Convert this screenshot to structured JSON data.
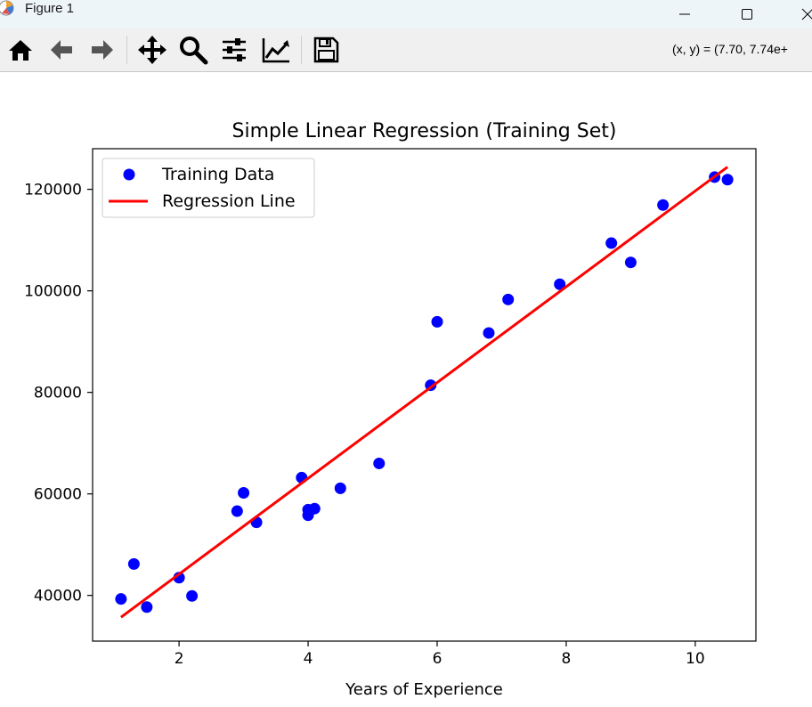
{
  "window": {
    "title": "Figure 1"
  },
  "toolbar": {
    "tools": [
      {
        "name": "home-icon"
      },
      {
        "name": "back-arrow-icon"
      },
      {
        "name": "forward-arrow-icon"
      },
      {
        "name": "pan-icon"
      },
      {
        "name": "zoom-icon"
      },
      {
        "name": "subplots-config-icon"
      },
      {
        "name": "edit-axis-icon"
      },
      {
        "name": "save-icon"
      }
    ],
    "coordinates": "(x, y) = (7.70, 7.74e+"
  },
  "chart_data": {
    "type": "scatter",
    "title": "Simple Linear Regression (Training Set)",
    "xlabel": "Years of Experience",
    "ylabel": "",
    "xlim": [
      0.66,
      10.94
    ],
    "ylim": [
      31000,
      128000
    ],
    "xticks": [
      2,
      4,
      6,
      8,
      10
    ],
    "yticks": [
      40000,
      60000,
      80000,
      100000,
      120000
    ],
    "xtick_labels": [
      "2",
      "4",
      "6",
      "8",
      "10"
    ],
    "ytick_labels": [
      "40000",
      "60000",
      "80000",
      "100000",
      "120000"
    ],
    "grid": false,
    "legend": {
      "placement": "top-left",
      "entries": [
        "Training Data",
        "Regression Line"
      ]
    },
    "series": [
      {
        "name": "Training Data",
        "kind": "scatter",
        "color": "#0000ff",
        "points": [
          [
            1.1,
            39300
          ],
          [
            1.3,
            46200
          ],
          [
            1.5,
            37700
          ],
          [
            2.0,
            43500
          ],
          [
            2.2,
            39900
          ],
          [
            2.9,
            56600
          ],
          [
            3.0,
            60200
          ],
          [
            3.2,
            54400
          ],
          [
            3.9,
            63200
          ],
          [
            4.0,
            55800
          ],
          [
            4.0,
            56900
          ],
          [
            4.1,
            57100
          ],
          [
            4.5,
            61100
          ],
          [
            5.1,
            66000
          ],
          [
            5.9,
            81400
          ],
          [
            6.0,
            93900
          ],
          [
            6.8,
            91700
          ],
          [
            7.1,
            98300
          ],
          [
            7.9,
            101300
          ],
          [
            8.7,
            109400
          ],
          [
            9.0,
            105600
          ],
          [
            9.5,
            116900
          ],
          [
            10.3,
            122400
          ],
          [
            10.5,
            121900
          ]
        ]
      },
      {
        "name": "Regression Line",
        "kind": "line",
        "color": "#ff0000",
        "points": [
          [
            1.1,
            35700
          ],
          [
            10.5,
            124400
          ]
        ]
      }
    ]
  }
}
